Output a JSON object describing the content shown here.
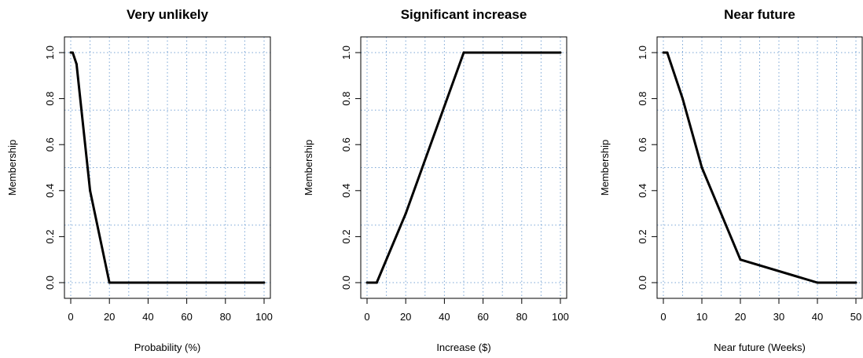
{
  "chart_data": [
    {
      "type": "line",
      "title": "Very unlikely",
      "xlabel": "Probability (%)",
      "ylabel": "Membership",
      "xlim": [
        0,
        100
      ],
      "ylim": [
        0,
        1
      ],
      "xticks": [
        0,
        20,
        40,
        60,
        80,
        100
      ],
      "yticks": [
        0.0,
        0.2,
        0.4,
        0.6,
        0.8,
        1.0
      ],
      "xtick_labels": [
        "0",
        "20",
        "40",
        "60",
        "80",
        "100"
      ],
      "ytick_labels": [
        "0.0",
        "0.2",
        "0.4",
        "0.6",
        "0.8",
        "1.0"
      ],
      "grid": true,
      "x": [
        0,
        1,
        3,
        10,
        20,
        100
      ],
      "y": [
        1.0,
        1.0,
        0.95,
        0.4,
        0.0,
        0.0
      ]
    },
    {
      "type": "line",
      "title": "Significant increase",
      "xlabel": "Increase ($)",
      "ylabel": "Membership",
      "xlim": [
        0,
        100
      ],
      "ylim": [
        0,
        1
      ],
      "xticks": [
        0,
        20,
        40,
        60,
        80,
        100
      ],
      "yticks": [
        0.0,
        0.2,
        0.4,
        0.6,
        0.8,
        1.0
      ],
      "xtick_labels": [
        "0",
        "20",
        "40",
        "60",
        "80",
        "100"
      ],
      "ytick_labels": [
        "0.0",
        "0.2",
        "0.4",
        "0.6",
        "0.8",
        "1.0"
      ],
      "grid": true,
      "x": [
        0,
        5,
        20,
        50,
        100
      ],
      "y": [
        0.0,
        0.0,
        0.3,
        1.0,
        1.0
      ]
    },
    {
      "type": "line",
      "title": "Near future",
      "xlabel": "Near future (Weeks)",
      "ylabel": "Membership",
      "xlim": [
        0,
        50
      ],
      "ylim": [
        0,
        1
      ],
      "xticks": [
        0,
        10,
        20,
        30,
        40,
        50
      ],
      "yticks": [
        0.0,
        0.2,
        0.4,
        0.6,
        0.8,
        1.0
      ],
      "xtick_labels": [
        "0",
        "10",
        "20",
        "30",
        "40",
        "50"
      ],
      "ytick_labels": [
        "0.0",
        "0.2",
        "0.4",
        "0.6",
        "0.8",
        "1.0"
      ],
      "grid": true,
      "x": [
        0,
        1,
        5,
        10,
        20,
        40,
        50
      ],
      "y": [
        1.0,
        1.0,
        0.8,
        0.5,
        0.1,
        0.0,
        0.0
      ]
    }
  ]
}
